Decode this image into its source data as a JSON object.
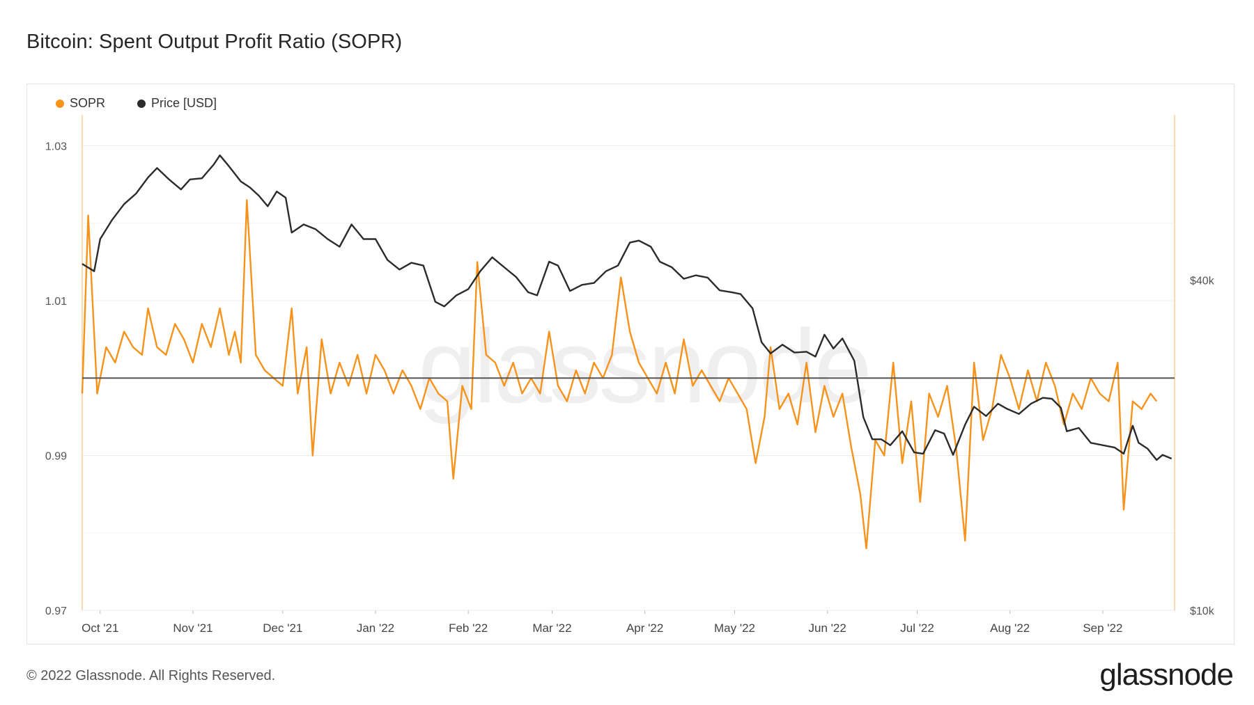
{
  "title": "Bitcoin: Spent Output Profit Ratio (SOPR)",
  "footer": "© 2022 Glassnode. All Rights Reserved.",
  "brand": "glassnode",
  "watermark": "glassnode",
  "legend": [
    {
      "label": "SOPR",
      "color": "#f7931a"
    },
    {
      "label": "Price [USD]",
      "color": "#2b2b2b"
    }
  ],
  "chart_data": {
    "type": "line",
    "x_ticks": [
      "Oct '21",
      "Nov '21",
      "Dec '21",
      "Jan '22",
      "Feb '22",
      "Mar '22",
      "Apr '22",
      "May '22",
      "Jun '22",
      "Jul '22",
      "Aug '22",
      "Sep '22"
    ],
    "x_range": [
      "2021-09-25",
      "2022-09-25"
    ],
    "y_left": {
      "ticks": [
        "1.03",
        "1.01",
        "0.99",
        "0.97"
      ],
      "range": [
        0.97,
        1.034
      ]
    },
    "y_right": {
      "ticks": [
        "$40k",
        "$10k"
      ],
      "scale": "log",
      "range": [
        10000,
        80000
      ]
    },
    "reference_line": 1.0,
    "series": [
      {
        "name": "SOPR",
        "axis": "left",
        "color": "#f7931a",
        "points": [
          [
            "2021-09-25",
            0.998
          ],
          [
            "2021-09-27",
            1.021
          ],
          [
            "2021-09-30",
            0.998
          ],
          [
            "2021-10-03",
            1.004
          ],
          [
            "2021-10-06",
            1.002
          ],
          [
            "2021-10-09",
            1.006
          ],
          [
            "2021-10-12",
            1.004
          ],
          [
            "2021-10-15",
            1.003
          ],
          [
            "2021-10-17",
            1.009
          ],
          [
            "2021-10-20",
            1.004
          ],
          [
            "2021-10-23",
            1.003
          ],
          [
            "2021-10-26",
            1.007
          ],
          [
            "2021-10-29",
            1.005
          ],
          [
            "2021-11-01",
            1.002
          ],
          [
            "2021-11-04",
            1.007
          ],
          [
            "2021-11-07",
            1.004
          ],
          [
            "2021-11-10",
            1.009
          ],
          [
            "2021-11-13",
            1.003
          ],
          [
            "2021-11-15",
            1.006
          ],
          [
            "2021-11-17",
            1.002
          ],
          [
            "2021-11-19",
            1.023
          ],
          [
            "2021-11-22",
            1.003
          ],
          [
            "2021-11-25",
            1.001
          ],
          [
            "2021-11-28",
            1.0
          ],
          [
            "2021-12-01",
            0.999
          ],
          [
            "2021-12-04",
            1.009
          ],
          [
            "2021-12-06",
            0.998
          ],
          [
            "2021-12-09",
            1.004
          ],
          [
            "2021-12-11",
            0.99
          ],
          [
            "2021-12-14",
            1.005
          ],
          [
            "2021-12-17",
            0.998
          ],
          [
            "2021-12-20",
            1.002
          ],
          [
            "2021-12-23",
            0.999
          ],
          [
            "2021-12-26",
            1.003
          ],
          [
            "2021-12-29",
            0.998
          ],
          [
            "2022-01-01",
            1.003
          ],
          [
            "2022-01-04",
            1.001
          ],
          [
            "2022-01-07",
            0.998
          ],
          [
            "2022-01-10",
            1.001
          ],
          [
            "2022-01-13",
            0.999
          ],
          [
            "2022-01-16",
            0.996
          ],
          [
            "2022-01-19",
            1.0
          ],
          [
            "2022-01-22",
            0.998
          ],
          [
            "2022-01-25",
            0.997
          ],
          [
            "2022-01-27",
            0.987
          ],
          [
            "2022-01-30",
            0.999
          ],
          [
            "2022-02-02",
            0.996
          ],
          [
            "2022-02-04",
            1.015
          ],
          [
            "2022-02-07",
            1.003
          ],
          [
            "2022-02-10",
            1.002
          ],
          [
            "2022-02-13",
            0.999
          ],
          [
            "2022-02-16",
            1.002
          ],
          [
            "2022-02-19",
            0.998
          ],
          [
            "2022-02-22",
            1.0
          ],
          [
            "2022-02-25",
            0.998
          ],
          [
            "2022-02-28",
            1.006
          ],
          [
            "2022-03-03",
            0.999
          ],
          [
            "2022-03-06",
            0.997
          ],
          [
            "2022-03-09",
            1.001
          ],
          [
            "2022-03-12",
            0.998
          ],
          [
            "2022-03-15",
            1.002
          ],
          [
            "2022-03-18",
            1.0
          ],
          [
            "2022-03-21",
            1.003
          ],
          [
            "2022-03-24",
            1.013
          ],
          [
            "2022-03-27",
            1.006
          ],
          [
            "2022-03-30",
            1.002
          ],
          [
            "2022-04-02",
            1.0
          ],
          [
            "2022-04-05",
            0.998
          ],
          [
            "2022-04-08",
            1.002
          ],
          [
            "2022-04-11",
            0.998
          ],
          [
            "2022-04-14",
            1.005
          ],
          [
            "2022-04-17",
            0.999
          ],
          [
            "2022-04-20",
            1.001
          ],
          [
            "2022-04-23",
            0.999
          ],
          [
            "2022-04-26",
            0.997
          ],
          [
            "2022-04-29",
            1.0
          ],
          [
            "2022-05-02",
            0.998
          ],
          [
            "2022-05-05",
            0.996
          ],
          [
            "2022-05-08",
            0.989
          ],
          [
            "2022-05-11",
            0.995
          ],
          [
            "2022-05-13",
            1.004
          ],
          [
            "2022-05-16",
            0.996
          ],
          [
            "2022-05-19",
            0.998
          ],
          [
            "2022-05-22",
            0.994
          ],
          [
            "2022-05-25",
            1.002
          ],
          [
            "2022-05-28",
            0.993
          ],
          [
            "2022-05-31",
            0.999
          ],
          [
            "2022-06-03",
            0.995
          ],
          [
            "2022-06-06",
            0.998
          ],
          [
            "2022-06-09",
            0.991
          ],
          [
            "2022-06-12",
            0.985
          ],
          [
            "2022-06-14",
            0.978
          ],
          [
            "2022-06-17",
            0.992
          ],
          [
            "2022-06-20",
            0.99
          ],
          [
            "2022-06-23",
            1.002
          ],
          [
            "2022-06-26",
            0.989
          ],
          [
            "2022-06-29",
            0.997
          ],
          [
            "2022-07-02",
            0.984
          ],
          [
            "2022-07-05",
            0.998
          ],
          [
            "2022-07-08",
            0.995
          ],
          [
            "2022-07-11",
            0.999
          ],
          [
            "2022-07-14",
            0.991
          ],
          [
            "2022-07-17",
            0.979
          ],
          [
            "2022-07-20",
            1.002
          ],
          [
            "2022-07-23",
            0.992
          ],
          [
            "2022-07-26",
            0.996
          ],
          [
            "2022-07-29",
            1.003
          ],
          [
            "2022-08-01",
            1.0
          ],
          [
            "2022-08-04",
            0.996
          ],
          [
            "2022-08-07",
            1.001
          ],
          [
            "2022-08-10",
            0.997
          ],
          [
            "2022-08-13",
            1.002
          ],
          [
            "2022-08-16",
            0.999
          ],
          [
            "2022-08-19",
            0.994
          ],
          [
            "2022-08-22",
            0.998
          ],
          [
            "2022-08-25",
            0.996
          ],
          [
            "2022-08-28",
            1.0
          ],
          [
            "2022-08-31",
            0.998
          ],
          [
            "2022-09-03",
            0.997
          ],
          [
            "2022-09-06",
            1.002
          ],
          [
            "2022-09-08",
            0.983
          ],
          [
            "2022-09-11",
            0.997
          ],
          [
            "2022-09-14",
            0.996
          ],
          [
            "2022-09-17",
            0.998
          ],
          [
            "2022-09-19",
            0.997
          ]
        ]
      },
      {
        "name": "Price [USD]",
        "axis": "right",
        "color": "#2b2b2b",
        "points": [
          [
            "2021-09-25",
            42800
          ],
          [
            "2021-09-29",
            41500
          ],
          [
            "2021-10-01",
            47500
          ],
          [
            "2021-10-05",
            51500
          ],
          [
            "2021-10-09",
            55000
          ],
          [
            "2021-10-13",
            57500
          ],
          [
            "2021-10-17",
            61500
          ],
          [
            "2021-10-20",
            64000
          ],
          [
            "2021-10-24",
            61000
          ],
          [
            "2021-10-28",
            58500
          ],
          [
            "2021-10-31",
            61000
          ],
          [
            "2021-11-04",
            61300
          ],
          [
            "2021-11-08",
            65000
          ],
          [
            "2021-11-10",
            67500
          ],
          [
            "2021-11-13",
            64500
          ],
          [
            "2021-11-17",
            60500
          ],
          [
            "2021-11-20",
            59000
          ],
          [
            "2021-11-23",
            57000
          ],
          [
            "2021-11-26",
            54500
          ],
          [
            "2021-11-29",
            58000
          ],
          [
            "2021-12-02",
            56500
          ],
          [
            "2021-12-04",
            48800
          ],
          [
            "2021-12-08",
            50500
          ],
          [
            "2021-12-12",
            49500
          ],
          [
            "2021-12-16",
            47500
          ],
          [
            "2021-12-20",
            46000
          ],
          [
            "2021-12-24",
            50500
          ],
          [
            "2021-12-28",
            47500
          ],
          [
            "2022-01-01",
            47500
          ],
          [
            "2022-01-05",
            43500
          ],
          [
            "2022-01-09",
            41800
          ],
          [
            "2022-01-13",
            43000
          ],
          [
            "2022-01-17",
            42500
          ],
          [
            "2022-01-21",
            36500
          ],
          [
            "2022-01-24",
            35800
          ],
          [
            "2022-01-28",
            37500
          ],
          [
            "2022-02-01",
            38500
          ],
          [
            "2022-02-05",
            41500
          ],
          [
            "2022-02-09",
            44000
          ],
          [
            "2022-02-13",
            42200
          ],
          [
            "2022-02-17",
            40500
          ],
          [
            "2022-02-21",
            38000
          ],
          [
            "2022-02-24",
            37500
          ],
          [
            "2022-02-28",
            43200
          ],
          [
            "2022-03-03",
            42500
          ],
          [
            "2022-03-07",
            38200
          ],
          [
            "2022-03-11",
            39200
          ],
          [
            "2022-03-15",
            39500
          ],
          [
            "2022-03-19",
            41500
          ],
          [
            "2022-03-23",
            42500
          ],
          [
            "2022-03-27",
            46800
          ],
          [
            "2022-03-30",
            47200
          ],
          [
            "2022-04-03",
            46000
          ],
          [
            "2022-04-06",
            43200
          ],
          [
            "2022-04-10",
            42200
          ],
          [
            "2022-04-14",
            40200
          ],
          [
            "2022-04-18",
            40800
          ],
          [
            "2022-04-22",
            40400
          ],
          [
            "2022-04-26",
            38300
          ],
          [
            "2022-04-30",
            38000
          ],
          [
            "2022-05-03",
            37700
          ],
          [
            "2022-05-07",
            35500
          ],
          [
            "2022-05-10",
            30800
          ],
          [
            "2022-05-13",
            29400
          ],
          [
            "2022-05-17",
            30500
          ],
          [
            "2022-05-21",
            29500
          ],
          [
            "2022-05-25",
            29600
          ],
          [
            "2022-05-28",
            29000
          ],
          [
            "2022-05-31",
            31800
          ],
          [
            "2022-06-03",
            30000
          ],
          [
            "2022-06-06",
            31300
          ],
          [
            "2022-06-10",
            28500
          ],
          [
            "2022-06-13",
            22500
          ],
          [
            "2022-06-16",
            20500
          ],
          [
            "2022-06-19",
            20500
          ],
          [
            "2022-06-22",
            20000
          ],
          [
            "2022-06-26",
            21200
          ],
          [
            "2022-06-30",
            19400
          ],
          [
            "2022-07-03",
            19300
          ],
          [
            "2022-07-07",
            21300
          ],
          [
            "2022-07-10",
            21000
          ],
          [
            "2022-07-13",
            19200
          ],
          [
            "2022-07-17",
            21800
          ],
          [
            "2022-07-20",
            23500
          ],
          [
            "2022-07-24",
            22600
          ],
          [
            "2022-07-28",
            23800
          ],
          [
            "2022-07-31",
            23300
          ],
          [
            "2022-08-04",
            22800
          ],
          [
            "2022-08-08",
            23800
          ],
          [
            "2022-08-12",
            24400
          ],
          [
            "2022-08-15",
            24300
          ],
          [
            "2022-08-18",
            23400
          ],
          [
            "2022-08-20",
            21200
          ],
          [
            "2022-08-24",
            21500
          ],
          [
            "2022-08-28",
            20200
          ],
          [
            "2022-09-01",
            20000
          ],
          [
            "2022-09-05",
            19800
          ],
          [
            "2022-09-08",
            19300
          ],
          [
            "2022-09-11",
            21700
          ],
          [
            "2022-09-13",
            20200
          ],
          [
            "2022-09-16",
            19700
          ],
          [
            "2022-09-19",
            18800
          ],
          [
            "2022-09-21",
            19200
          ],
          [
            "2022-09-24",
            18900
          ]
        ]
      }
    ]
  }
}
